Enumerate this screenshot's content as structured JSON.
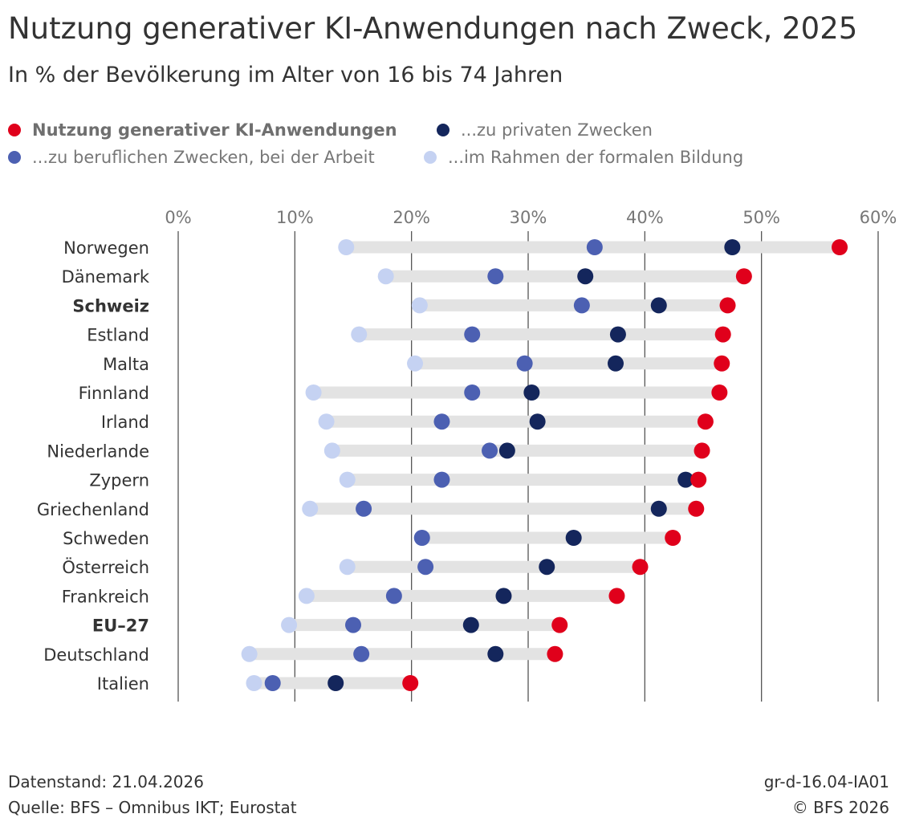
{
  "title": "Nutzung generativer KI-Anwendungen nach Zweck, 2025",
  "subtitle": "In % der Bevölkerung im Alter von 16 bis 74 Jahren",
  "legend": [
    {
      "label": "Nutzung generativer KI-Anwendungen",
      "color": "#e0001b",
      "bold": true
    },
    {
      "label": "...zu privaten Zwecken",
      "color": "#14265c",
      "bold": false
    },
    {
      "label": "...zu beruflichen Zwecken, bei der Arbeit",
      "color": "#4c60b2",
      "bold": false
    },
    {
      "label": "...im Rahmen der formalen Bildung",
      "color": "#c5d2f2",
      "bold": false
    }
  ],
  "footer": {
    "datenstand": "Datenstand: 21.04.2026",
    "quelle": "Quelle: BFS – Omnibus IKT; Eurostat",
    "code": "gr-d-16.04-IA01",
    "copyright": "© BFS 2026"
  },
  "colors": {
    "range_bar": "#e3e3e3",
    "grid": "#555555"
  },
  "chart_data": {
    "type": "scatter",
    "orientation": "horizontal-dot-plot",
    "xlim": [
      0,
      60
    ],
    "ticks": [
      0,
      10,
      20,
      30,
      40,
      50,
      60
    ],
    "tick_labels": [
      "0%",
      "10%",
      "20%",
      "30%",
      "40%",
      "50%",
      "60%"
    ],
    "categories": [
      "Norwegen",
      "Dänemark",
      "Schweiz",
      "Estland",
      "Malta",
      "Finnland",
      "Irland",
      "Niederlande",
      "Zypern",
      "Griechenland",
      "Schweden",
      "Österreich",
      "Frankreich",
      "EU–27",
      "Deutschland",
      "Italien"
    ],
    "bold_categories": [
      "Schweiz",
      "EU–27"
    ],
    "series": [
      {
        "name": "Nutzung generativer KI-Anwendungen",
        "color": "#e0001b",
        "values": [
          56.7,
          48.5,
          47.1,
          46.7,
          46.6,
          46.4,
          45.2,
          44.9,
          44.6,
          44.4,
          42.4,
          39.6,
          37.6,
          32.7,
          32.3,
          19.9
        ]
      },
      {
        "name": "...zu privaten Zwecken",
        "color": "#14265c",
        "values": [
          47.5,
          34.9,
          41.2,
          37.7,
          37.5,
          30.3,
          30.8,
          28.2,
          43.5,
          41.2,
          33.9,
          31.6,
          27.9,
          25.1,
          27.2,
          13.5
        ]
      },
      {
        "name": "...zu beruflichen Zwecken, bei der Arbeit",
        "color": "#4c60b2",
        "values": [
          35.7,
          27.2,
          34.6,
          25.2,
          29.7,
          25.2,
          22.6,
          26.7,
          22.6,
          15.9,
          20.9,
          21.2,
          18.5,
          15.0,
          15.7,
          8.1
        ]
      },
      {
        "name": "...im Rahmen der formalen Bildung",
        "color": "#c5d2f2",
        "values": [
          14.4,
          17.8,
          20.7,
          15.5,
          20.3,
          11.6,
          12.7,
          13.2,
          14.5,
          11.3,
          20.9,
          14.5,
          11.0,
          9.5,
          6.1,
          6.5
        ]
      }
    ]
  }
}
